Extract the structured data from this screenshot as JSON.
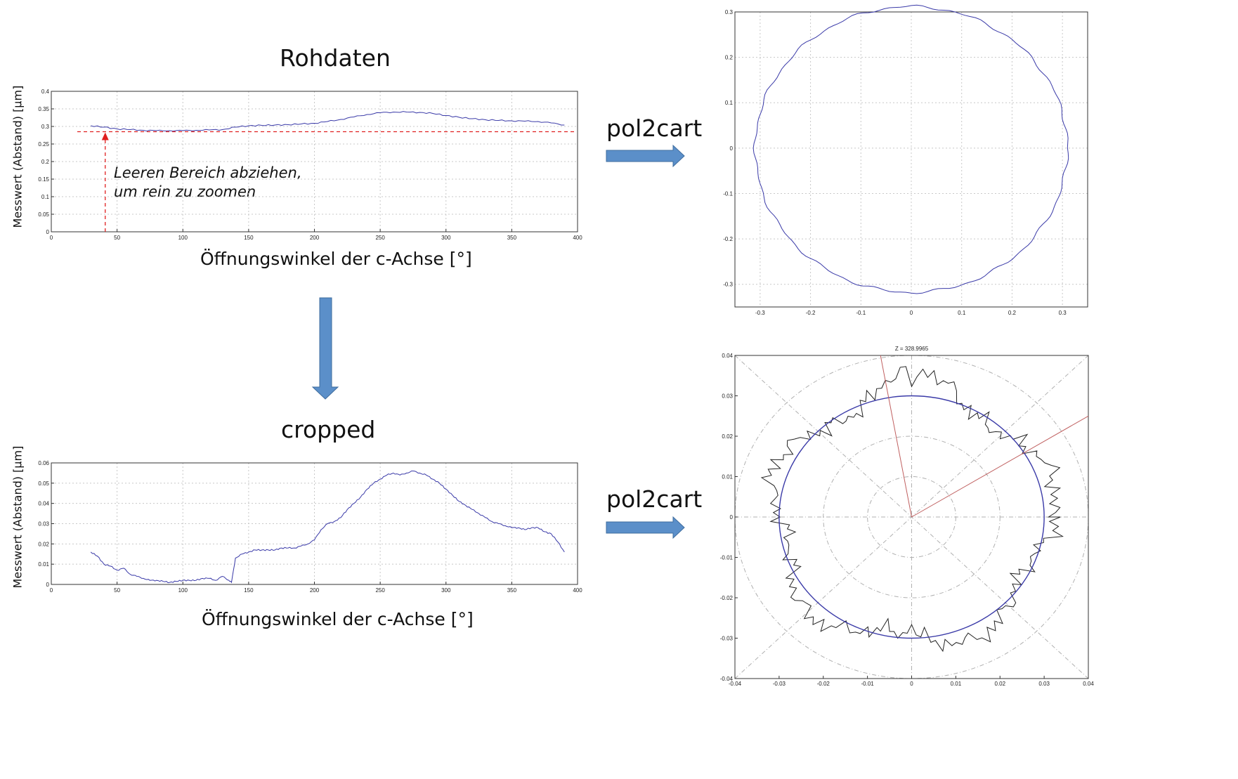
{
  "labels": {
    "title_raw": "Rohdaten",
    "title_cropped": "cropped",
    "op1": "pol2cart",
    "op2": "pol2cart",
    "annotation_line1": "Leeren Bereich abziehen,",
    "annotation_line2": "um rein zu zoomen",
    "xlabel": "Öffnungswinkel der c-Achse [°]",
    "ylabel": "Messwert (Abstand) [µm]"
  },
  "colors": {
    "arrow": "#5b8fc9",
    "arrow_stroke": "#3f6d9e",
    "series": "#3a3aa8",
    "threshold": "#e02020",
    "polar_ray": "#c06060",
    "measured": "#222222",
    "grid": "#c8c8c8",
    "polar_grid": "#b0b0b0"
  },
  "chart_data": [
    {
      "id": "raw",
      "type": "line",
      "xlabel": "Öffnungswinkel der c-Achse [°]",
      "ylabel": "Messwert (Abstand) [µm]",
      "xlim": [
        0,
        400
      ],
      "ylim": [
        0,
        0.4
      ],
      "xticks": [
        "0",
        "50",
        "100",
        "150",
        "200",
        "250",
        "300",
        "350",
        "400"
      ],
      "yticks": [
        "0",
        "0.05",
        "0.1",
        "0.15",
        "0.2",
        "0.25",
        "0.3",
        "0.35",
        "0.4"
      ],
      "grid": true,
      "threshold_y": 0.285,
      "threshold_arrow_x": 41,
      "x": [
        30,
        40,
        50,
        60,
        70,
        80,
        90,
        100,
        110,
        120,
        130,
        140,
        150,
        160,
        170,
        180,
        190,
        200,
        210,
        220,
        230,
        240,
        250,
        260,
        270,
        280,
        290,
        300,
        310,
        320,
        330,
        340,
        350,
        360,
        370,
        380,
        390
      ],
      "y": [
        0.302,
        0.298,
        0.293,
        0.291,
        0.289,
        0.288,
        0.288,
        0.288,
        0.289,
        0.29,
        0.291,
        0.298,
        0.302,
        0.303,
        0.304,
        0.305,
        0.307,
        0.309,
        0.314,
        0.32,
        0.327,
        0.334,
        0.339,
        0.341,
        0.341,
        0.34,
        0.337,
        0.331,
        0.326,
        0.322,
        0.319,
        0.317,
        0.316,
        0.315,
        0.314,
        0.31,
        0.304
      ]
    },
    {
      "id": "cropped",
      "type": "line",
      "xlabel": "Öffnungswinkel der c-Achse [°]",
      "ylabel": "Messwert (Abstand) [µm]",
      "xlim": [
        0,
        400
      ],
      "ylim": [
        0,
        0.06
      ],
      "xticks": [
        "0",
        "50",
        "100",
        "150",
        "200",
        "250",
        "300",
        "350",
        "400"
      ],
      "yticks": [
        "0",
        "0.01",
        "0.02",
        "0.03",
        "0.04",
        "0.05",
        "0.06"
      ],
      "grid": true,
      "x": [
        30,
        35,
        40,
        45,
        50,
        55,
        60,
        65,
        70,
        75,
        80,
        85,
        90,
        95,
        100,
        105,
        110,
        115,
        120,
        125,
        130,
        135,
        137,
        140,
        145,
        150,
        155,
        160,
        165,
        170,
        175,
        180,
        185,
        190,
        195,
        200,
        205,
        210,
        215,
        220,
        225,
        230,
        235,
        240,
        245,
        250,
        255,
        260,
        265,
        270,
        275,
        280,
        285,
        290,
        295,
        300,
        305,
        310,
        315,
        320,
        325,
        330,
        335,
        340,
        345,
        350,
        355,
        360,
        365,
        370,
        375,
        380,
        385,
        390
      ],
      "y": [
        0.016,
        0.014,
        0.01,
        0.009,
        0.007,
        0.008,
        0.005,
        0.004,
        0.003,
        0.002,
        0.002,
        0.0015,
        0.001,
        0.0015,
        0.002,
        0.002,
        0.002,
        0.003,
        0.003,
        0.002,
        0.004,
        0.002,
        0.001,
        0.013,
        0.015,
        0.016,
        0.017,
        0.017,
        0.017,
        0.017,
        0.018,
        0.018,
        0.018,
        0.019,
        0.02,
        0.022,
        0.027,
        0.03,
        0.031,
        0.033,
        0.037,
        0.04,
        0.043,
        0.047,
        0.05,
        0.052,
        0.054,
        0.055,
        0.054,
        0.055,
        0.056,
        0.055,
        0.054,
        0.052,
        0.05,
        0.047,
        0.044,
        0.041,
        0.039,
        0.037,
        0.035,
        0.033,
        0.031,
        0.03,
        0.029,
        0.028,
        0.028,
        0.027,
        0.028,
        0.028,
        0.026,
        0.025,
        0.021,
        0.016
      ]
    },
    {
      "id": "cart_raw",
      "type": "scatter",
      "xlim": [
        -0.35,
        0.35
      ],
      "ylim": [
        -0.35,
        0.3
      ],
      "xticks": [
        "-0.3",
        "-0.2",
        "-0.1",
        "0",
        "0.1",
        "0.2",
        "0.3"
      ],
      "yticks": [
        "-0.3",
        "-0.2",
        "-0.1",
        "0",
        "0.1",
        "0.2",
        "0.3"
      ],
      "grid": true,
      "shape": "closed curve",
      "rx": 0.31,
      "ry_top": 0.312,
      "ry_bottom": 0.318
    },
    {
      "id": "cart_cropped",
      "type": "scatter",
      "title": "Z = 328.9965",
      "xlim": [
        -0.04,
        0.04
      ],
      "ylim": [
        -0.04,
        0.04
      ],
      "xticks": [
        "-0.04",
        "-0.03",
        "-0.02",
        "-0.01",
        "0",
        "0.01",
        "0.02",
        "0.03",
        "0.04"
      ],
      "yticks": [
        "-0.04",
        "-0.03",
        "-0.02",
        "-0.01",
        "0",
        "0.01",
        "0.02",
        "0.03",
        "0.04"
      ],
      "polar_grid": true,
      "reference_radius": 0.03,
      "rays_deg": [
        100,
        32
      ]
    }
  ]
}
